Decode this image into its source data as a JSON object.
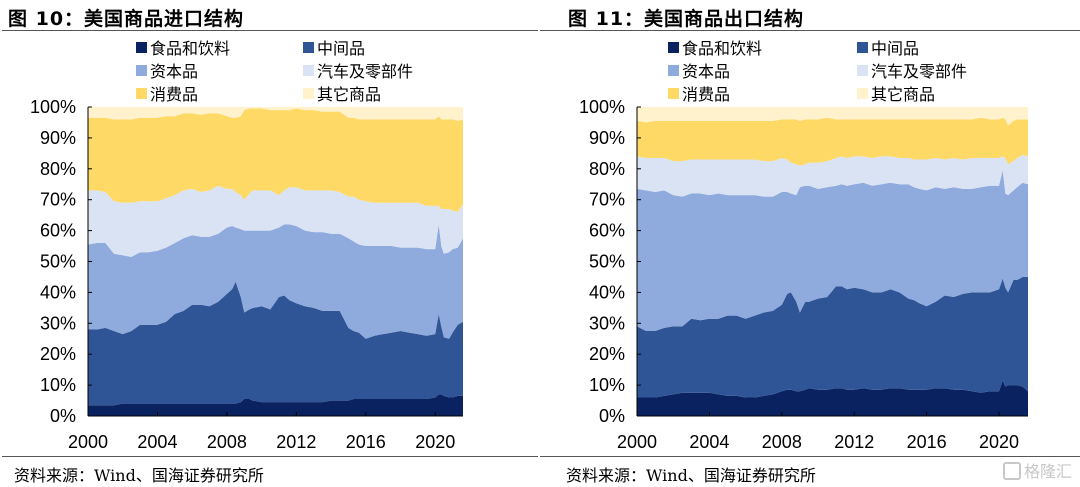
{
  "source_note": "资料来源：Wind、国海证券研究所",
  "watermark": "格隆汇",
  "colors": {
    "food": "#0b2260",
    "intermediate": "#2f5597",
    "capital": "#8faadc",
    "auto": "#dae3f3",
    "consumer": "#ffd966",
    "other": "#fff2cc"
  },
  "chart_data": [
    {
      "type": "area",
      "stacked": true,
      "title": "图 10：美国商品进口结构",
      "xlabel": "",
      "ylabel": "",
      "ylim": [
        0,
        1
      ],
      "yticks": [
        "0%",
        "10%",
        "20%",
        "30%",
        "40%",
        "50%",
        "60%",
        "70%",
        "80%",
        "90%",
        "100%"
      ],
      "xticks": [
        "2000",
        "2004",
        "2008",
        "2012",
        "2016",
        "2020"
      ],
      "xlim": [
        2000,
        2021.6
      ],
      "grid": false,
      "legend_position": "top",
      "legend": [
        "食品和饮料",
        "中间品",
        "资本品",
        "汽车及零部件",
        "消费品",
        "其它商品"
      ],
      "x": [
        2000,
        2000.5,
        2001,
        2001.5,
        2002,
        2002.5,
        2003,
        2003.5,
        2004,
        2004.5,
        2005,
        2005.5,
        2006,
        2006.5,
        2007,
        2007.5,
        2008,
        2008.3,
        2008.5,
        2008.8,
        2009,
        2009.3,
        2009.5,
        2010,
        2010.5,
        2011,
        2011.3,
        2011.6,
        2012,
        2012.5,
        2013,
        2013.5,
        2014,
        2014.5,
        2015,
        2015.3,
        2015.6,
        2016,
        2016.5,
        2017,
        2017.5,
        2018,
        2018.5,
        2019,
        2019.5,
        2020,
        2020.2,
        2020.35,
        2020.5,
        2020.8,
        2021,
        2021.3,
        2021.6
      ],
      "series": [
        {
          "name": "食品和饮料",
          "values": [
            0.035,
            0.035,
            0.035,
            0.035,
            0.04,
            0.04,
            0.04,
            0.04,
            0.04,
            0.04,
            0.04,
            0.04,
            0.04,
            0.04,
            0.04,
            0.04,
            0.04,
            0.04,
            0.04,
            0.045,
            0.055,
            0.055,
            0.05,
            0.045,
            0.045,
            0.045,
            0.045,
            0.045,
            0.045,
            0.045,
            0.045,
            0.045,
            0.05,
            0.05,
            0.05,
            0.055,
            0.055,
            0.055,
            0.055,
            0.055,
            0.055,
            0.055,
            0.055,
            0.055,
            0.055,
            0.06,
            0.07,
            0.07,
            0.065,
            0.06,
            0.06,
            0.065,
            0.065
          ]
        },
        {
          "name": "中间品",
          "values": [
            0.245,
            0.245,
            0.25,
            0.24,
            0.225,
            0.235,
            0.255,
            0.255,
            0.255,
            0.265,
            0.29,
            0.3,
            0.32,
            0.32,
            0.315,
            0.33,
            0.355,
            0.37,
            0.395,
            0.34,
            0.28,
            0.29,
            0.3,
            0.31,
            0.3,
            0.34,
            0.345,
            0.33,
            0.32,
            0.31,
            0.305,
            0.295,
            0.29,
            0.29,
            0.235,
            0.22,
            0.215,
            0.195,
            0.205,
            0.21,
            0.215,
            0.22,
            0.215,
            0.21,
            0.205,
            0.205,
            0.26,
            0.22,
            0.19,
            0.19,
            0.21,
            0.23,
            0.24
          ]
        },
        {
          "name": "资本品",
          "values": [
            0.275,
            0.28,
            0.275,
            0.25,
            0.255,
            0.24,
            0.235,
            0.235,
            0.24,
            0.24,
            0.23,
            0.235,
            0.225,
            0.22,
            0.225,
            0.22,
            0.215,
            0.205,
            0.175,
            0.22,
            0.265,
            0.255,
            0.25,
            0.245,
            0.255,
            0.225,
            0.23,
            0.245,
            0.25,
            0.245,
            0.245,
            0.255,
            0.25,
            0.25,
            0.29,
            0.29,
            0.285,
            0.3,
            0.29,
            0.285,
            0.28,
            0.27,
            0.275,
            0.28,
            0.28,
            0.275,
            0.29,
            0.26,
            0.27,
            0.28,
            0.27,
            0.25,
            0.27
          ]
        },
        {
          "name": "汽车及零部件",
          "values": [
            0.175,
            0.17,
            0.165,
            0.17,
            0.17,
            0.175,
            0.165,
            0.165,
            0.16,
            0.16,
            0.155,
            0.155,
            0.15,
            0.145,
            0.15,
            0.155,
            0.125,
            0.12,
            0.115,
            0.11,
            0.1,
            0.12,
            0.13,
            0.13,
            0.13,
            0.105,
            0.11,
            0.12,
            0.125,
            0.13,
            0.135,
            0.135,
            0.14,
            0.135,
            0.135,
            0.145,
            0.145,
            0.145,
            0.14,
            0.14,
            0.14,
            0.145,
            0.145,
            0.145,
            0.14,
            0.14,
            0.06,
            0.12,
            0.145,
            0.14,
            0.125,
            0.115,
            0.11
          ]
        },
        {
          "name": "消费品",
          "values": [
            0.235,
            0.235,
            0.24,
            0.265,
            0.27,
            0.27,
            0.27,
            0.27,
            0.27,
            0.265,
            0.255,
            0.25,
            0.245,
            0.25,
            0.25,
            0.235,
            0.235,
            0.23,
            0.24,
            0.255,
            0.29,
            0.275,
            0.265,
            0.265,
            0.26,
            0.275,
            0.26,
            0.25,
            0.255,
            0.26,
            0.26,
            0.255,
            0.255,
            0.26,
            0.255,
            0.255,
            0.26,
            0.265,
            0.27,
            0.27,
            0.27,
            0.27,
            0.27,
            0.27,
            0.28,
            0.28,
            0.29,
            0.29,
            0.29,
            0.29,
            0.295,
            0.295,
            0.275
          ]
        },
        {
          "name": "其它商品",
          "values": [
            0.035,
            0.035,
            0.035,
            0.04,
            0.04,
            0.04,
            0.035,
            0.035,
            0.035,
            0.035,
            0.03,
            0.03,
            0.03,
            0.03,
            0.03,
            0.03,
            0.03,
            0.03,
            0.035,
            0.035,
            0.04,
            0.035,
            0.035,
            0.035,
            0.035,
            0.035,
            0.035,
            0.035,
            0.035,
            0.035,
            0.035,
            0.035,
            0.035,
            0.035,
            0.035,
            0.035,
            0.035,
            0.035,
            0.035,
            0.035,
            0.035,
            0.035,
            0.035,
            0.035,
            0.035,
            0.035,
            0.03,
            0.035,
            0.035,
            0.04,
            0.04,
            0.045,
            0.045
          ]
        }
      ]
    },
    {
      "type": "area",
      "stacked": true,
      "title": "图 11：美国商品出口结构",
      "xlabel": "",
      "ylabel": "",
      "ylim": [
        0,
        1
      ],
      "yticks": [
        "0%",
        "10%",
        "20%",
        "30%",
        "40%",
        "50%",
        "60%",
        "70%",
        "80%",
        "90%",
        "100%"
      ],
      "xticks": [
        "2000",
        "2004",
        "2008",
        "2012",
        "2016",
        "2020"
      ],
      "xlim": [
        2000,
        2021.6
      ],
      "grid": false,
      "legend_position": "top",
      "legend": [
        "食品和饮料",
        "中间品",
        "资本品",
        "汽车及零部件",
        "消费品",
        "其它商品"
      ],
      "x": [
        2000,
        2000.5,
        2001,
        2001.5,
        2002,
        2002.5,
        2003,
        2003.5,
        2004,
        2004.5,
        2005,
        2005.5,
        2006,
        2006.5,
        2007,
        2007.5,
        2008,
        2008.3,
        2008.5,
        2008.8,
        2009,
        2009.3,
        2009.5,
        2010,
        2010.5,
        2011,
        2011.3,
        2011.6,
        2012,
        2012.5,
        2013,
        2013.5,
        2014,
        2014.5,
        2015,
        2015.3,
        2015.6,
        2016,
        2016.5,
        2017,
        2017.5,
        2018,
        2018.5,
        2019,
        2019.5,
        2020,
        2020.2,
        2020.35,
        2020.5,
        2020.8,
        2021,
        2021.3,
        2021.6
      ],
      "series": [
        {
          "name": "食品和饮料",
          "values": [
            0.06,
            0.06,
            0.06,
            0.065,
            0.07,
            0.075,
            0.075,
            0.075,
            0.075,
            0.07,
            0.065,
            0.065,
            0.06,
            0.06,
            0.065,
            0.07,
            0.08,
            0.085,
            0.085,
            0.08,
            0.08,
            0.085,
            0.09,
            0.085,
            0.085,
            0.09,
            0.09,
            0.085,
            0.085,
            0.09,
            0.085,
            0.085,
            0.09,
            0.09,
            0.085,
            0.085,
            0.085,
            0.085,
            0.09,
            0.09,
            0.085,
            0.085,
            0.08,
            0.075,
            0.08,
            0.08,
            0.115,
            0.095,
            0.1,
            0.1,
            0.1,
            0.095,
            0.08
          ]
        },
        {
          "name": "中间品",
          "values": [
            0.23,
            0.215,
            0.215,
            0.22,
            0.22,
            0.215,
            0.24,
            0.235,
            0.24,
            0.245,
            0.26,
            0.26,
            0.255,
            0.265,
            0.27,
            0.27,
            0.28,
            0.31,
            0.315,
            0.29,
            0.255,
            0.285,
            0.28,
            0.295,
            0.3,
            0.33,
            0.33,
            0.325,
            0.33,
            0.32,
            0.315,
            0.315,
            0.32,
            0.31,
            0.295,
            0.29,
            0.28,
            0.27,
            0.28,
            0.3,
            0.3,
            0.31,
            0.32,
            0.325,
            0.32,
            0.33,
            0.33,
            0.32,
            0.3,
            0.34,
            0.34,
            0.355,
            0.37
          ]
        },
        {
          "name": "资本品",
          "values": [
            0.445,
            0.455,
            0.45,
            0.445,
            0.425,
            0.42,
            0.405,
            0.41,
            0.4,
            0.405,
            0.39,
            0.39,
            0.4,
            0.39,
            0.375,
            0.37,
            0.365,
            0.33,
            0.32,
            0.345,
            0.405,
            0.375,
            0.375,
            0.355,
            0.355,
            0.325,
            0.33,
            0.335,
            0.335,
            0.345,
            0.345,
            0.35,
            0.345,
            0.35,
            0.37,
            0.365,
            0.37,
            0.375,
            0.37,
            0.345,
            0.355,
            0.34,
            0.335,
            0.34,
            0.345,
            0.335,
            0.35,
            0.305,
            0.315,
            0.29,
            0.3,
            0.305,
            0.3
          ]
        },
        {
          "name": "汽车及零部件",
          "values": [
            0.105,
            0.105,
            0.11,
            0.105,
            0.11,
            0.115,
            0.11,
            0.11,
            0.115,
            0.11,
            0.115,
            0.115,
            0.115,
            0.115,
            0.115,
            0.115,
            0.11,
            0.105,
            0.1,
            0.1,
            0.07,
            0.07,
            0.075,
            0.085,
            0.085,
            0.09,
            0.09,
            0.09,
            0.09,
            0.085,
            0.09,
            0.09,
            0.085,
            0.085,
            0.085,
            0.09,
            0.095,
            0.1,
            0.095,
            0.095,
            0.095,
            0.095,
            0.1,
            0.095,
            0.09,
            0.09,
            0.045,
            0.115,
            0.1,
            0.095,
            0.095,
            0.09,
            0.09
          ]
        },
        {
          "name": "消费品",
          "values": [
            0.115,
            0.115,
            0.12,
            0.12,
            0.13,
            0.13,
            0.125,
            0.125,
            0.125,
            0.125,
            0.125,
            0.125,
            0.125,
            0.125,
            0.13,
            0.13,
            0.125,
            0.13,
            0.14,
            0.145,
            0.145,
            0.145,
            0.14,
            0.14,
            0.14,
            0.125,
            0.12,
            0.125,
            0.12,
            0.12,
            0.125,
            0.12,
            0.12,
            0.125,
            0.125,
            0.13,
            0.13,
            0.13,
            0.125,
            0.13,
            0.125,
            0.13,
            0.125,
            0.13,
            0.125,
            0.125,
            0.125,
            0.125,
            0.125,
            0.13,
            0.125,
            0.115,
            0.12
          ]
        },
        {
          "name": "其它商品",
          "values": [
            0.045,
            0.05,
            0.045,
            0.045,
            0.045,
            0.045,
            0.045,
            0.045,
            0.045,
            0.045,
            0.045,
            0.045,
            0.045,
            0.045,
            0.045,
            0.045,
            0.04,
            0.04,
            0.04,
            0.04,
            0.045,
            0.04,
            0.04,
            0.04,
            0.035,
            0.04,
            0.04,
            0.04,
            0.04,
            0.04,
            0.04,
            0.04,
            0.04,
            0.04,
            0.04,
            0.04,
            0.04,
            0.04,
            0.04,
            0.04,
            0.04,
            0.04,
            0.04,
            0.035,
            0.04,
            0.04,
            0.035,
            0.04,
            0.06,
            0.045,
            0.04,
            0.04,
            0.04
          ]
        }
      ]
    }
  ]
}
